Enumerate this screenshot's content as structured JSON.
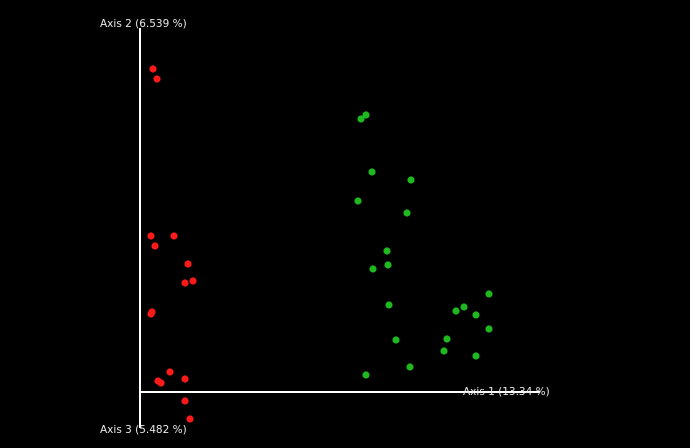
{
  "chart_data": {
    "type": "scatter",
    "x_label": "Axis 1 (13.34 %)",
    "y_label": "Axis 2 (6.539 %)",
    "z_label": "Axis 3 (5.482 %)",
    "xlim": [
      0,
      400
    ],
    "ylim": [
      -40,
      368
    ],
    "series": [
      {
        "color": "#ff1a1a",
        "x": [
          13,
          17,
          11,
          34,
          15,
          48,
          53,
          45,
          12,
          11,
          30,
          18,
          21,
          45,
          45,
          50
        ],
        "values": [
          323,
          313,
          156,
          156,
          146,
          128,
          111,
          109,
          80,
          78,
          20,
          11,
          9,
          13,
          -9,
          -27
        ]
      },
      {
        "color": "#1fb81f",
        "x": [
          221,
          226,
          232,
          271,
          218,
          267,
          247,
          233,
          248,
          249,
          349,
          324,
          316,
          336,
          349,
          307,
          256,
          304,
          336,
          270,
          226
        ],
        "values": [
          273,
          277,
          220,
          212,
          191,
          179,
          141,
          123,
          127,
          87,
          98,
          85,
          81,
          77,
          63,
          53,
          52,
          41,
          36,
          25,
          17
        ]
      }
    ]
  }
}
